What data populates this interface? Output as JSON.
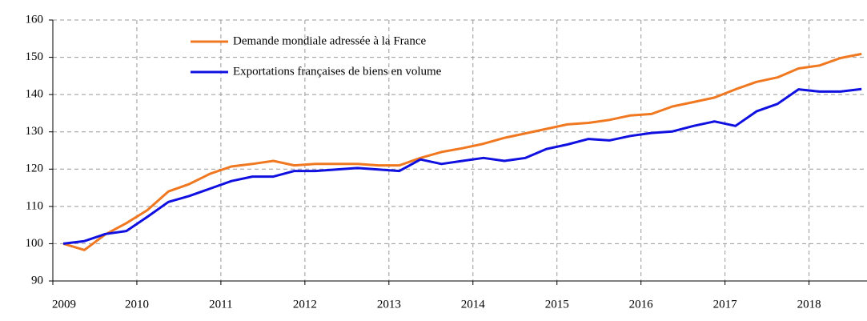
{
  "chart_data": {
    "type": "line",
    "x": [
      2009.125,
      2009.375,
      2009.625,
      2009.875,
      2010.125,
      2010.375,
      2010.625,
      2010.875,
      2011.125,
      2011.375,
      2011.625,
      2011.875,
      2012.125,
      2012.375,
      2012.625,
      2012.875,
      2013.125,
      2013.375,
      2013.625,
      2013.875,
      2014.125,
      2014.375,
      2014.625,
      2014.875,
      2015.125,
      2015.375,
      2015.625,
      2015.875,
      2016.125,
      2016.375,
      2016.625,
      2016.875,
      2017.125,
      2017.375,
      2017.625,
      2017.875,
      2018.125,
      2018.375,
      2018.625
    ],
    "series": [
      {
        "name": "Demande mondiale adressée à la France",
        "color": "#f07820",
        "values": [
          100,
          98.3,
          102.5,
          105.5,
          109,
          114,
          116,
          118.8,
          120.7,
          121.4,
          122.2,
          121,
          121.4,
          121.4,
          121.4,
          121,
          121,
          123,
          124.6,
          125.6,
          126.8,
          128.4,
          129.6,
          130.8,
          132,
          132.4,
          133.2,
          134.4,
          134.8,
          136.8,
          138,
          139.2,
          141.4,
          143.4,
          144.6,
          147,
          147.8,
          149.8,
          150.9
        ]
      },
      {
        "name": "Exportations françaises de biens en volume",
        "color": "#1010e0",
        "values": [
          100,
          100.7,
          102.6,
          103.4,
          107.2,
          111.2,
          112.8,
          114.8,
          116.8,
          118,
          118,
          119.5,
          119.5,
          119.9,
          120.3,
          119.9,
          119.5,
          122.6,
          121.4,
          122.2,
          123,
          122.2,
          123,
          125.4,
          126.6,
          128.1,
          127.7,
          128.9,
          129.7,
          130.1,
          131.6,
          132.8,
          131.6,
          135.5,
          137.5,
          141.4,
          140.8,
          140.8,
          141.5
        ]
      }
    ],
    "xlim": [
      2009,
      2018.69
    ],
    "xticks": [
      2009,
      2010,
      2011,
      2012,
      2013,
      2014,
      2015,
      2016,
      2017,
      2018
    ],
    "ylim": [
      90,
      160
    ],
    "yticks": [
      90,
      100,
      110,
      120,
      130,
      140,
      150,
      160
    ],
    "grid": true
  }
}
